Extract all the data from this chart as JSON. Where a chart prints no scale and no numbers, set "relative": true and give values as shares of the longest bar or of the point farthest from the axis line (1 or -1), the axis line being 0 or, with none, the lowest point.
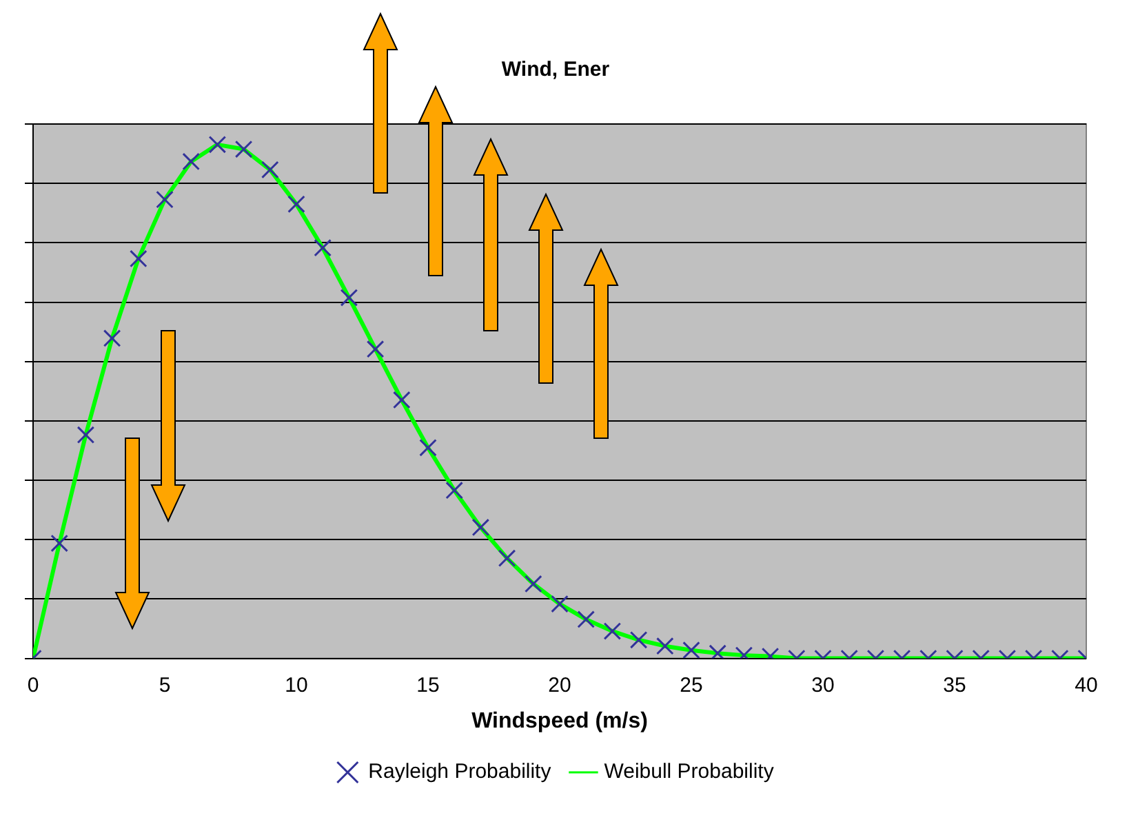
{
  "chart_data": {
    "type": "line",
    "title": "Wind, Ener",
    "xlabel": "Windspeed (m/s)",
    "relative": true,
    "grid": "y",
    "legend": "bottom",
    "x": [
      0,
      1,
      2,
      3,
      4,
      5,
      6,
      7,
      8,
      9,
      10,
      11,
      12,
      13,
      14,
      15,
      16,
      17,
      18,
      19,
      20,
      21,
      22,
      23,
      24,
      25,
      26,
      27,
      28,
      29,
      30,
      31,
      32,
      33,
      34,
      35,
      36,
      37,
      38,
      39,
      40
    ],
    "xlim": [
      0,
      40
    ],
    "xticks": [
      0,
      5,
      10,
      15,
      20,
      25,
      30,
      35,
      40
    ],
    "series": [
      {
        "name": "Rayleigh Probability",
        "type": "scatter",
        "marker": "cross",
        "color": "#333399",
        "values": [
          0,
          0.224,
          0.435,
          0.623,
          0.778,
          0.893,
          0.967,
          1,
          0.991,
          0.951,
          0.884,
          0.799,
          0.702,
          0.602,
          0.503,
          0.41,
          0.327,
          0.255,
          0.195,
          0.145,
          0.106,
          0.076,
          0.053,
          0.036,
          0.024,
          0.016,
          0.01,
          0.006,
          0.004,
          0,
          0,
          0,
          0,
          0,
          0,
          0,
          0,
          0,
          0,
          0,
          0
        ]
      },
      {
        "name": "Weibull Probability",
        "marker": "none",
        "color": "#00ff00",
        "values": [
          0,
          0.224,
          0.435,
          0.623,
          0.778,
          0.893,
          0.967,
          1,
          0.991,
          0.951,
          0.884,
          0.799,
          0.702,
          0.602,
          0.503,
          0.41,
          0.327,
          0.255,
          0.195,
          0.145,
          0.106,
          0.076,
          0.053,
          0.036,
          0.024,
          0.016,
          0.01,
          0.006,
          0.004,
          0,
          0,
          0,
          0,
          0,
          0,
          0,
          0,
          0,
          0,
          0,
          0
        ]
      }
    ]
  }
}
